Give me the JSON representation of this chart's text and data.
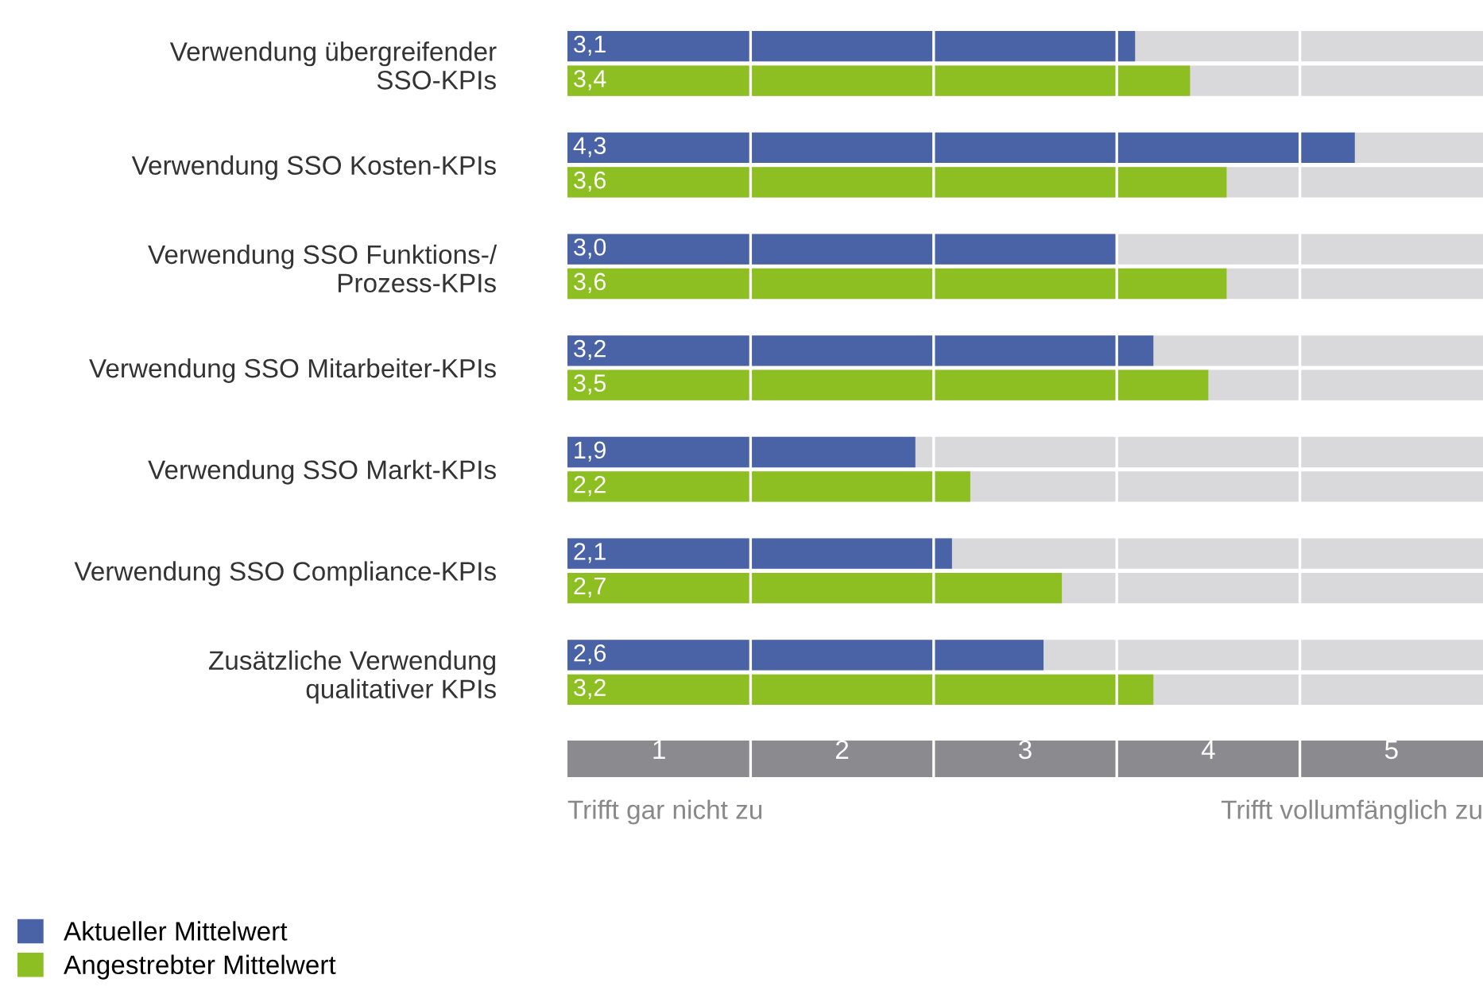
{
  "chart_data": {
    "type": "bar",
    "orientation": "horizontal",
    "categories": [
      "Verwendung übergreifender\nSSO-KPIs",
      "Verwendung SSO Kosten-KPIs",
      "Verwendung SSO Funktions-/\nProzess-KPIs",
      "Verwendung SSO Mitarbeiter-KPIs",
      "Verwendung SSO Markt-KPIs",
      "Verwendung SSO Compliance-KPIs",
      "Zusätzliche Verwendung\nqualitativer KPIs"
    ],
    "series": [
      {
        "name": "Aktueller Mittelwert",
        "color": "#4a62a6",
        "values": [
          3.1,
          4.3,
          3.0,
          3.2,
          1.9,
          2.1,
          2.6
        ],
        "value_labels": [
          "3,1",
          "4,3",
          "3,0",
          "3,2",
          "1,9",
          "2,1",
          "2,6"
        ]
      },
      {
        "name": "Angestrebter Mittelwert",
        "color": "#8dbf22",
        "values": [
          3.4,
          3.6,
          3.6,
          3.5,
          2.2,
          2.7,
          3.2
        ],
        "value_labels": [
          "3,4",
          "3,6",
          "3,6",
          "3,5",
          "2,2",
          "2,7",
          "3,2"
        ]
      }
    ],
    "xlim": [
      0,
      5
    ],
    "xticks": [
      {
        "value": 0.5,
        "label": "1"
      },
      {
        "value": 1.5,
        "label": "2"
      },
      {
        "value": 2.5,
        "label": "3"
      },
      {
        "value": 3.5,
        "label": "4"
      },
      {
        "value": 4.5,
        "label": "5"
      }
    ],
    "grid": "x",
    "legend": "bottom left",
    "annotations": [
      "Trifft gar nicht zu",
      "Trifft vollumfänglich zu"
    ]
  }
}
